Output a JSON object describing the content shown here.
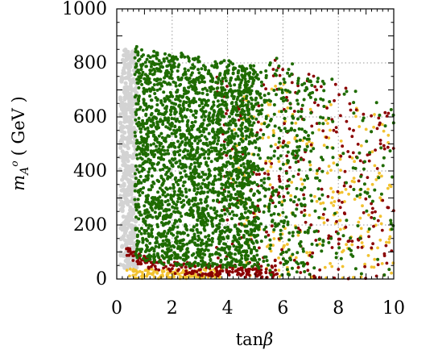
{
  "chart_data": {
    "type": "scatter",
    "title": "",
    "xlabel": "tanβ",
    "ylabel": "m_{A^o} ( GeV )",
    "ylabel_parts": {
      "symbol": "m",
      "subscript": "A",
      "superscript": "o",
      "unit": "( GeV )"
    },
    "xlabel_parts": {
      "func": "tan",
      "symbol": "β"
    },
    "xlim": [
      0,
      10
    ],
    "ylim": [
      0,
      1000
    ],
    "x_ticks": [
      0,
      2,
      4,
      6,
      8,
      10
    ],
    "y_ticks": [
      0,
      200,
      400,
      600,
      800,
      1000
    ],
    "x_tick_labels": [
      "0",
      "2",
      "4",
      "6",
      "8",
      "10"
    ],
    "y_tick_labels": [
      "0",
      "200",
      "400",
      "600",
      "800",
      "1000"
    ],
    "grid": true,
    "legend": "none",
    "series": [
      {
        "color": "#d3d3d3",
        "region": {
          "x": [
            0.0,
            0.7
          ],
          "y": [
            0,
            860
          ]
        }
      },
      {
        "color": "#f2c230",
        "region": {
          "x": [
            0.3,
            10
          ],
          "y": [
            0,
            760
          ]
        }
      },
      {
        "color": "#8b0000",
        "region": {
          "x": [
            0.3,
            10
          ],
          "y": [
            0,
            850
          ]
        }
      },
      {
        "color": "#1e6b00",
        "region": {
          "x": [
            0.6,
            10
          ],
          "y": [
            15,
            860
          ]
        }
      }
    ]
  }
}
